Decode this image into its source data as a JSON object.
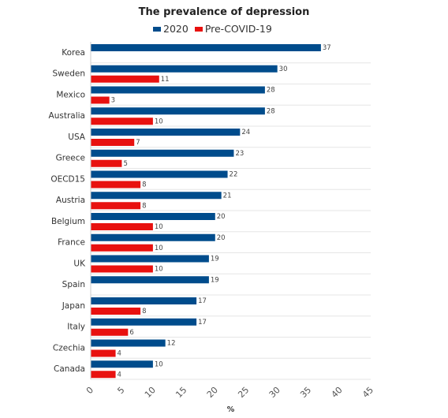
{
  "chart_data": {
    "type": "bar",
    "orientation": "horizontal",
    "title": "The prevalence of depression",
    "xlabel": "%",
    "ylabel": "",
    "xlim": [
      0,
      45
    ],
    "xticks": [
      0,
      5,
      10,
      15,
      20,
      25,
      30,
      35,
      40,
      45
    ],
    "legend_position": "top",
    "grid": false,
    "categories": [
      "Korea",
      "Sweden",
      "Mexico",
      "Australia",
      "USA",
      "Greece",
      "OECD15",
      "Austria",
      "Belgium",
      "France",
      "UK",
      "Spain",
      "Japan",
      "Italy",
      "Czechia",
      "Canada"
    ],
    "series": [
      {
        "name": "2020",
        "color": "#004c8c",
        "values": [
          37,
          30,
          28,
          28,
          24,
          23,
          22,
          21,
          20,
          20,
          19,
          19,
          17,
          17,
          12,
          10
        ]
      },
      {
        "name": "Pre-COVID-19",
        "color": "#e8110f",
        "values": [
          null,
          11,
          3,
          10,
          7,
          5,
          8,
          8,
          10,
          10,
          10,
          null,
          8,
          6,
          4,
          4
        ]
      }
    ]
  }
}
